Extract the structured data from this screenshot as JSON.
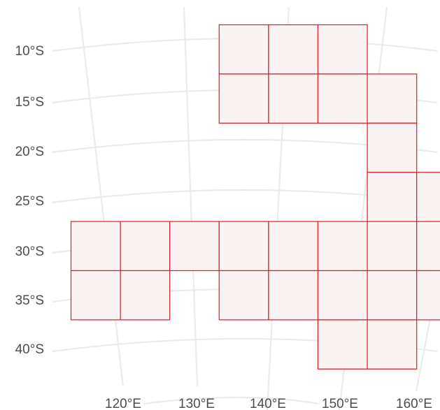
{
  "map": {
    "projection": "conic",
    "graticule_color": "#ebebeb",
    "cell_fill": "#f9f3f3",
    "cell_stroke": "#e41a1c",
    "lat_labels": [
      "10°S",
      "15°S",
      "20°S",
      "25°S",
      "30°S",
      "35°S",
      "40°S"
    ],
    "lon_labels": [
      "120°E",
      "130°E",
      "140°E",
      "150°E",
      "160°E"
    ],
    "grid_cells": [
      [
        3,
        0
      ],
      [
        4,
        0
      ],
      [
        5,
        0
      ],
      [
        3,
        1
      ],
      [
        4,
        1
      ],
      [
        5,
        1
      ],
      [
        6,
        1
      ],
      [
        6,
        2
      ],
      [
        6,
        3
      ],
      [
        7,
        3
      ],
      [
        0,
        4
      ],
      [
        1,
        4
      ],
      [
        2,
        4
      ],
      [
        3,
        4
      ],
      [
        4,
        4
      ],
      [
        5,
        4
      ],
      [
        6,
        4
      ],
      [
        7,
        4
      ],
      [
        0,
        5
      ],
      [
        1,
        5
      ],
      [
        3,
        5
      ],
      [
        4,
        5
      ],
      [
        5,
        5
      ],
      [
        6,
        5
      ],
      [
        7,
        5
      ],
      [
        5,
        6
      ],
      [
        6,
        6
      ]
    ]
  }
}
